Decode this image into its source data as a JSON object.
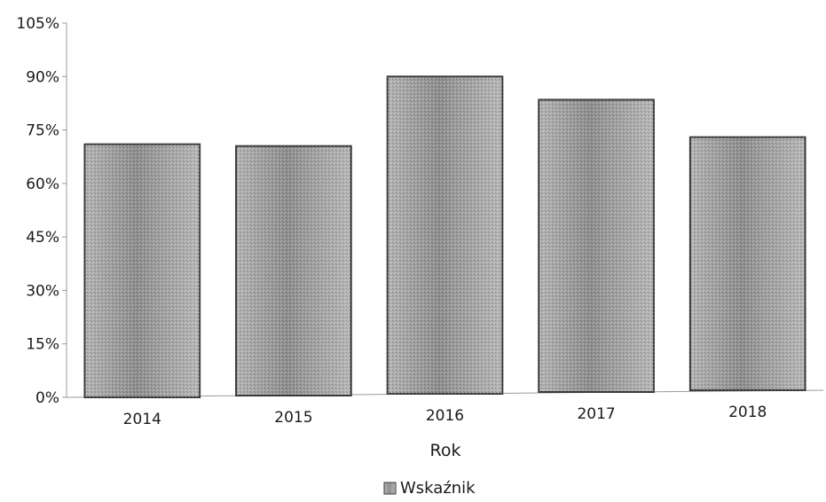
{
  "chart_data": {
    "type": "bar",
    "categories": [
      "2014",
      "2015",
      "2016",
      "2017",
      "2018"
    ],
    "series": [
      {
        "name": "Wskaźnik",
        "values": [
          71,
          70,
          89,
          82,
          71
        ]
      }
    ],
    "xlabel": "Rok",
    "ylabel": "",
    "ylim": [
      0,
      105
    ],
    "yticks": [
      0,
      15,
      30,
      45,
      60,
      75,
      90,
      105
    ],
    "ytick_labels": [
      "0%",
      "15%",
      "30%",
      "45%",
      "60%",
      "75%",
      "90%",
      "105%"
    ],
    "grid": false,
    "legend_position": "bottom-center",
    "colors": {
      "bar_fill": "#a8a8a8",
      "bar_edge": "#3a3a3a",
      "axis": "#9a9a9a"
    }
  }
}
